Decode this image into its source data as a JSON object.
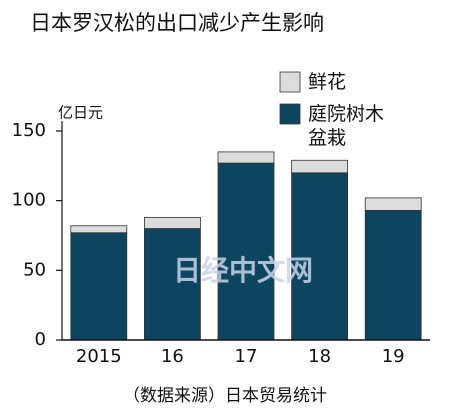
{
  "chart_data": {
    "type": "stacked_bar",
    "title": "日本罗汉松的出口减少产生影响",
    "y_label": "亿日元",
    "categories": [
      "2015",
      "16",
      "17",
      "18",
      "19"
    ],
    "series": [
      {
        "name": "庭院树木盆栽",
        "color": "#0d4560",
        "values": [
          77,
          80,
          127,
          120,
          93
        ]
      },
      {
        "name": "鲜花",
        "color": "#dcdcdc",
        "values": [
          5,
          8,
          8,
          9,
          9
        ]
      }
    ],
    "ylim": [
      0,
      150
    ],
    "yticks": [
      0,
      50,
      100,
      150
    ],
    "source": "（数据来源）日本贸易统计",
    "watermark": "日经中文网"
  }
}
